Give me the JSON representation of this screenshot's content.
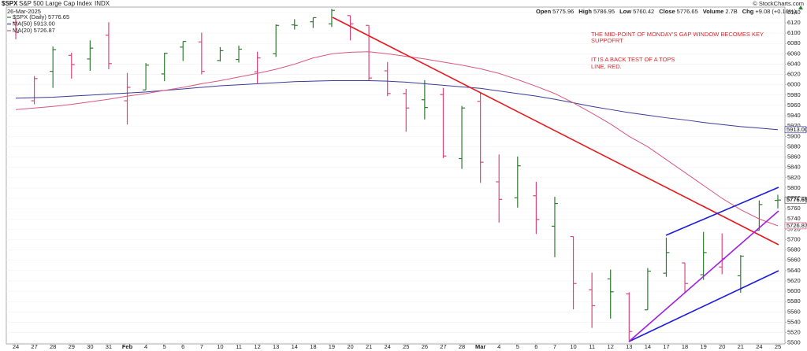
{
  "chart_data": {
    "type": "ohlc",
    "symbol": "$SPX",
    "name": "S&P 500 Large Cap Index",
    "exchange": "INDX",
    "date": "26-Mar-2025",
    "copyright": "© StockCharts.com",
    "quote": [
      {
        "label": "Open",
        "value": 5775.96
      },
      {
        "label": "High",
        "value": 5786.95
      },
      {
        "label": "Low",
        "value": 5760.42
      },
      {
        "label": "Close",
        "value": 5776.65
      },
      {
        "label": "Volume",
        "value": "2.7B"
      },
      {
        "label": "Chg",
        "value": "+9.08 (+0.16%)"
      }
    ],
    "annotations": [
      "THE MID-POINT OF MONDAY'S GAP WINDOW BECOMES KEY",
      "SUPPOFRT",
      "IT IS A BACK TEST OF A TOPS",
      "LINE, RED."
    ],
    "categories": [
      "24",
      "27",
      "28",
      "29",
      "30",
      "31",
      "Feb",
      "4",
      "5",
      "6",
      "7",
      "10",
      "11",
      "12",
      "13",
      "14",
      "18",
      "19",
      "20",
      "21",
      "24",
      "25",
      "26",
      "27",
      "28",
      "Mar",
      "4",
      "5",
      "6",
      "7",
      "10",
      "11",
      "12",
      "13",
      "14",
      "17",
      "18",
      "19",
      "20",
      "21",
      "24",
      "25"
    ],
    "ylim": [
      5498,
      6152
    ],
    "yticks": [
      5500,
      5520,
      5540,
      5560,
      5580,
      5600,
      5620,
      5640,
      5660,
      5680,
      5700,
      5720,
      5740,
      5760,
      5780,
      5800,
      5820,
      5840,
      5860,
      5880,
      5900,
      5920,
      5940,
      5960,
      5980,
      6000,
      6020,
      6040,
      6060,
      6080,
      6100,
      6120,
      6140
    ],
    "grid": true,
    "series": [
      {
        "name": "$SPX (Daily) 5776.65",
        "up_color": "#2f7d32",
        "down_color": "#e0457b",
        "last_label": {
          "value": 5776.65,
          "label": "5776.65"
        },
        "open": [
          6121,
          5969,
          6026,
          6057,
          6050,
          6096,
          5969,
          5990,
          6021,
          6073,
          6083,
          6047,
          6049,
          6025,
          6060,
          6116,
          6122,
          6118,
          6134,
          6115,
          6027,
          5983,
          5971,
          5981,
          5857,
          5968,
          5812,
          5781,
          5785,
          5726,
          5706,
          5603,
          5624,
          5595,
          5564,
          5635,
          5655,
          5632,
          5647,
          5630,
          5718,
          5775.96
        ],
        "high": [
          6128,
          6017,
          6074,
          6062,
          6086,
          6121,
          6023,
          6042,
          6062,
          6084,
          6101,
          6073,
          6076,
          6064,
          6117,
          6127,
          6130,
          6147,
          6134,
          6115,
          6044,
          5992,
          6009,
          5994,
          5959,
          5986,
          5865,
          5861,
          5812,
          5783,
          5706,
          5636,
          5642,
          5598,
          5645,
          5704,
          5655,
          5715,
          5712,
          5670,
          5776,
          5786.95
        ],
        "low": [
          6088,
          5962,
          5994,
          6012,
          6027,
          6030,
          5923,
          5990,
          6007,
          6046,
          6020,
          6045,
          6043,
          6003,
          6054,
          6107,
          6110,
          6112,
          6086,
          6009,
          5978,
          5909,
          5933,
          5858,
          5837,
          5810,
          5733,
          5762,
          5711,
          5666,
          5565,
          5529,
          5547,
          5505,
          5564,
          5628,
          5597,
          5622,
          5633,
          5597,
          5718,
          5760.42
        ],
        "close": [
          6101,
          6012,
          6068,
          6039,
          6071,
          6041,
          5995,
          6038,
          6061,
          6084,
          6026,
          6066,
          6069,
          6052,
          6115,
          6115,
          6130,
          6144,
          6118,
          6013,
          5983,
          5955,
          5956,
          5862,
          5955,
          5850,
          5778,
          5843,
          5739,
          5770,
          5615,
          5572,
          5599,
          5522,
          5639,
          5675,
          5615,
          5675,
          5663,
          5668,
          5768,
          5776.65
        ]
      },
      {
        "name": "MA(50) 5913.00",
        "color": "#3a3a9a",
        "last_label": {
          "value": 5913,
          "label": "5913.00"
        },
        "values": [
          5974,
          5975,
          5976,
          5978,
          5980,
          5982,
          5984,
          5986,
          5989,
          5992,
          5995,
          5998,
          6000,
          6002,
          6004,
          6006,
          6007,
          6008,
          6008,
          6008,
          6007,
          6005,
          6002,
          5999,
          5996,
          5993,
          5988,
          5983,
          5978,
          5972,
          5965,
          5958,
          5952,
          5946,
          5941,
          5936,
          5932,
          5927,
          5923,
          5919,
          5916,
          5913
        ]
      },
      {
        "name": "MA(20) 5726.87",
        "color": "#d9577f",
        "last_label": {
          "value": 5726.87,
          "label": "5726.87"
        },
        "values": [
          5952,
          5955,
          5958,
          5962,
          5967,
          5972,
          5978,
          5983,
          5989,
          5995,
          6002,
          6008,
          6015,
          6022,
          6030,
          6040,
          6052,
          6060,
          6063,
          6064,
          6060,
          6055,
          6050,
          6044,
          6038,
          6031,
          6022,
          6010,
          5997,
          5983,
          5965,
          5945,
          5924,
          5900,
          5880,
          5855,
          5830,
          5805,
          5780,
          5758,
          5740,
          5726.87
        ]
      }
    ]
  }
}
